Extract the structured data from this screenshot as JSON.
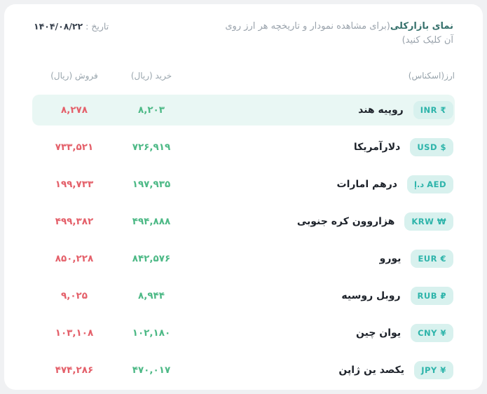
{
  "page": {
    "title_bold": "نمای بازارکلی",
    "title_rest": "(برای مشاهده نمودار و تاریخچه هر ارز روی آن کلیک کنید)",
    "date_label": "تاریخ :",
    "date_value": "۱۴۰۴/۰۸/۲۲"
  },
  "table": {
    "headers": {
      "currency": "ارز(اسکناس)",
      "buy": "خرید (ریال)",
      "sell": "فروش (ریال)"
    },
    "rows": [
      {
        "code": "INR",
        "badge": "INR ₹",
        "name": "روپیه هند",
        "buy": "۸,۲۰۳",
        "sell": "۸,۲۷۸",
        "highlighted": true
      },
      {
        "code": "USD",
        "badge": "USD $",
        "name": "دلارآمریکا",
        "buy": "۷۲۶,۹۱۹",
        "sell": "۷۳۳,۵۲۱",
        "highlighted": false
      },
      {
        "code": "AED",
        "badge": "د.إ AED",
        "name": "درهم امارات",
        "buy": "۱۹۷,۹۳۵",
        "sell": "۱۹۹,۷۳۳",
        "highlighted": false
      },
      {
        "code": "KRW",
        "badge": "KRW ₩",
        "name": "هزاروون کره جنوبی",
        "buy": "۴۹۴,۸۸۸",
        "sell": "۴۹۹,۳۸۲",
        "highlighted": false
      },
      {
        "code": "EUR",
        "badge": "EUR €",
        "name": "یورو",
        "buy": "۸۴۲,۵۷۶",
        "sell": "۸۵۰,۲۲۸",
        "highlighted": false
      },
      {
        "code": "RUB",
        "badge": "RUB ₽",
        "name": "روبل روسیه",
        "buy": "۸,۹۴۴",
        "sell": "۹,۰۲۵",
        "highlighted": false
      },
      {
        "code": "CNY",
        "badge": "CNY ¥",
        "name": "یوان چین",
        "buy": "۱۰۲,۱۸۰",
        "sell": "۱۰۳,۱۰۸",
        "highlighted": false
      },
      {
        "code": "JPY",
        "badge": "JPY ¥",
        "name": "یکصد ین ژاپن",
        "buy": "۴۷۰,۰۱۷",
        "sell": "۴۷۴,۲۸۶",
        "highlighted": false
      }
    ]
  },
  "colors": {
    "accent_teal": "#2db4aa",
    "badge_bg": "#d8f1ee",
    "title_teal": "#35706b",
    "buy_green": "#4db986",
    "sell_red": "#e4606a",
    "row_highlight": "#e9f7f4",
    "muted_gray": "#9aa3ac"
  }
}
